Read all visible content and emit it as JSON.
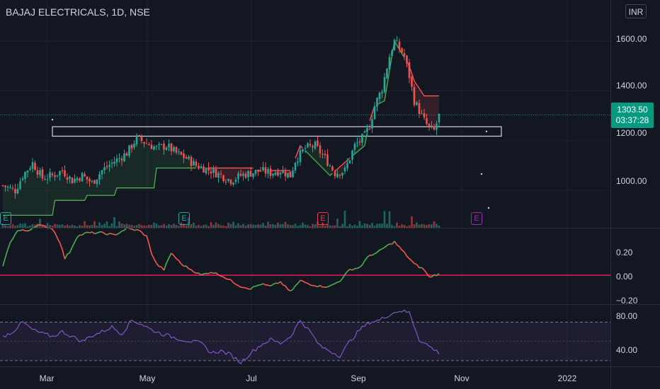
{
  "header": {
    "title": "BAJAJ ELECTRICALS, 1D, NSE",
    "currency": "INR"
  },
  "price_tag": {
    "price": "1303.50",
    "countdown": "03:37:28",
    "color": "#089981"
  },
  "price_axis": [
    "1600.00",
    "1400.00",
    "1200.00",
    "1000.00"
  ],
  "osc_axis": [
    "0.20",
    "0.00",
    "−0.20"
  ],
  "rsi_axis": [
    "80.00",
    "40.00"
  ],
  "time_axis": [
    "Mar",
    "May",
    "Jul",
    "Sep",
    "Nov",
    "2022"
  ],
  "earnings_badges": [
    {
      "label": "E",
      "color": "#26a69a"
    },
    {
      "label": "E",
      "color": "#26a69a"
    },
    {
      "label": "E",
      "color": "#f23645"
    },
    {
      "label": "E",
      "color": "#9c27b0"
    }
  ],
  "colors": {
    "background": "#131722",
    "up": "#26a69a",
    "down": "#ef5350",
    "supertrend_up": "#4caf50",
    "supertrend_down": "#ff5252",
    "zero_line": "#ea1e63",
    "rsi": "#7e57c2"
  },
  "chart_data": [
    {
      "type": "candlestick",
      "title": "BAJAJ ELECTRICALS, 1D, NSE",
      "ylim": [
        850,
        1680
      ],
      "y_ticks": [
        1000,
        1200,
        1400,
        1600
      ],
      "x_ticks": [
        "Mar",
        "May",
        "Jul",
        "Sep",
        "Nov",
        "2022"
      ],
      "last_price": 1303.5,
      "anchors": [
        [
          0,
          1020
        ],
        [
          5,
          1000
        ],
        [
          8,
          1060
        ],
        [
          12,
          1110
        ],
        [
          16,
          1050
        ],
        [
          20,
          1060
        ],
        [
          24,
          1080
        ],
        [
          28,
          1040
        ],
        [
          32,
          1060
        ],
        [
          36,
          1030
        ],
        [
          40,
          1080
        ],
        [
          44,
          1110
        ],
        [
          50,
          1150
        ],
        [
          54,
          1210
        ],
        [
          58,
          1190
        ],
        [
          62,
          1170
        ],
        [
          66,
          1180
        ],
        [
          70,
          1150
        ],
        [
          74,
          1130
        ],
        [
          78,
          1100
        ],
        [
          84,
          1080
        ],
        [
          88,
          1060
        ],
        [
          92,
          1040
        ],
        [
          96,
          1060
        ],
        [
          100,
          1070
        ],
        [
          104,
          1080
        ],
        [
          108,
          1070
        ],
        [
          112,
          1080
        ],
        [
          116,
          1060
        ],
        [
          118,
          1120
        ],
        [
          122,
          1170
        ],
        [
          126,
          1180
        ],
        [
          130,
          1130
        ],
        [
          134,
          1070
        ],
        [
          138,
          1080
        ],
        [
          142,
          1180
        ],
        [
          146,
          1220
        ],
        [
          148,
          1260
        ],
        [
          150,
          1340
        ],
        [
          153,
          1410
        ],
        [
          156,
          1540
        ],
        [
          158,
          1600
        ],
        [
          160,
          1570
        ],
        [
          162,
          1540
        ],
        [
          164,
          1460
        ],
        [
          166,
          1360
        ],
        [
          168,
          1320
        ],
        [
          170,
          1280
        ],
        [
          172,
          1250
        ],
        [
          174,
          1240
        ],
        [
          176,
          1300
        ]
      ],
      "supertrend_anchors": [
        [
          0,
          900
        ],
        [
          20,
          900
        ],
        [
          21,
          960
        ],
        [
          33,
          960
        ],
        [
          34,
          980
        ],
        [
          45,
          980
        ],
        [
          46,
          1010
        ],
        [
          61,
          1010
        ],
        [
          62,
          1090
        ],
        [
          101,
          1090
        ],
        [
          102,
          1080
        ],
        [
          117,
          1080
        ],
        [
          118,
          1130
        ],
        [
          120,
          1180
        ],
        [
          132,
          1060
        ],
        [
          140,
          1130
        ],
        [
          146,
          1180
        ],
        [
          148,
          1280
        ],
        [
          150,
          1340
        ],
        [
          154,
          1360
        ],
        [
          156,
          1480
        ],
        [
          158,
          1600
        ],
        [
          164,
          1500
        ],
        [
          166,
          1440
        ],
        [
          170,
          1380
        ],
        [
          174,
          1380
        ]
      ],
      "support_zone": [
        1218,
        1256
      ],
      "volume_relative": [
        0.3,
        0.4,
        0.3,
        0.5,
        0.3,
        0.4,
        0.3,
        0.6,
        0.3,
        0.4,
        0.3,
        0.3,
        0.5,
        0.3,
        0.4,
        1.0,
        0.3,
        0.5,
        0.4,
        0.3,
        0.3,
        0.4,
        0.3,
        0.3,
        0.5,
        0.3,
        0.4,
        0.3,
        0.3,
        0.4
      ],
      "oscillator": {
        "ylim": [
          -0.26,
          0.42
        ],
        "y_ticks": [
          0.2,
          0.0,
          -0.2
        ],
        "anchors": [
          [
            0,
            0.08
          ],
          [
            3,
            0.3
          ],
          [
            6,
            0.4
          ],
          [
            10,
            0.4
          ],
          [
            14,
            0.45
          ],
          [
            20,
            0.42
          ],
          [
            23,
            0.3
          ],
          [
            25,
            0.15
          ],
          [
            27,
            0.21
          ],
          [
            30,
            0.35
          ],
          [
            34,
            0.38
          ],
          [
            40,
            0.38
          ],
          [
            45,
            0.36
          ],
          [
            50,
            0.42
          ],
          [
            55,
            0.4
          ],
          [
            58,
            0.35
          ],
          [
            60,
            0.2
          ],
          [
            62,
            0.1
          ],
          [
            65,
            0.05
          ],
          [
            68,
            0.2
          ],
          [
            72,
            0.1
          ],
          [
            76,
            0.05
          ],
          [
            80,
            0.0
          ],
          [
            84,
            0.03
          ],
          [
            88,
            0.0
          ],
          [
            92,
            -0.05
          ],
          [
            96,
            -0.1
          ],
          [
            100,
            -0.12
          ],
          [
            104,
            -0.08
          ],
          [
            108,
            -0.1
          ],
          [
            112,
            -0.06
          ],
          [
            116,
            -0.15
          ],
          [
            120,
            -0.05
          ],
          [
            124,
            -0.08
          ],
          [
            128,
            -0.1
          ],
          [
            132,
            -0.1
          ],
          [
            136,
            -0.05
          ],
          [
            140,
            0.05
          ],
          [
            144,
            0.07
          ],
          [
            148,
            0.18
          ],
          [
            151,
            0.2
          ],
          [
            154,
            0.25
          ],
          [
            158,
            0.3
          ],
          [
            162,
            0.2
          ],
          [
            166,
            0.1
          ],
          [
            170,
            0.05
          ],
          [
            172,
            -0.02
          ],
          [
            174,
            0.0
          ],
          [
            176,
            0.01
          ]
        ]
      },
      "rsi": {
        "ylim": [
          24,
          88
        ],
        "y_ticks": [
          80,
          40
        ],
        "bands": [
          30,
          70
        ],
        "anchors": [
          [
            0,
            55
          ],
          [
            4,
            60
          ],
          [
            8,
            70
          ],
          [
            12,
            62
          ],
          [
            16,
            58
          ],
          [
            20,
            55
          ],
          [
            24,
            60
          ],
          [
            28,
            55
          ],
          [
            32,
            50
          ],
          [
            36,
            56
          ],
          [
            40,
            60
          ],
          [
            44,
            65
          ],
          [
            48,
            58
          ],
          [
            52,
            72
          ],
          [
            56,
            68
          ],
          [
            60,
            62
          ],
          [
            64,
            58
          ],
          [
            68,
            55
          ],
          [
            72,
            52
          ],
          [
            76,
            50
          ],
          [
            80,
            48
          ],
          [
            84,
            38
          ],
          [
            88,
            40
          ],
          [
            92,
            36
          ],
          [
            96,
            28
          ],
          [
            100,
            38
          ],
          [
            104,
            46
          ],
          [
            108,
            52
          ],
          [
            112,
            48
          ],
          [
            116,
            55
          ],
          [
            120,
            72
          ],
          [
            124,
            60
          ],
          [
            128,
            45
          ],
          [
            132,
            40
          ],
          [
            136,
            35
          ],
          [
            140,
            50
          ],
          [
            144,
            62
          ],
          [
            148,
            70
          ],
          [
            152,
            72
          ],
          [
            156,
            78
          ],
          [
            160,
            82
          ],
          [
            164,
            80
          ],
          [
            168,
            52
          ],
          [
            172,
            45
          ],
          [
            176,
            38
          ],
          [
            180,
            42
          ],
          [
            184,
            50
          ]
        ]
      }
    }
  ]
}
